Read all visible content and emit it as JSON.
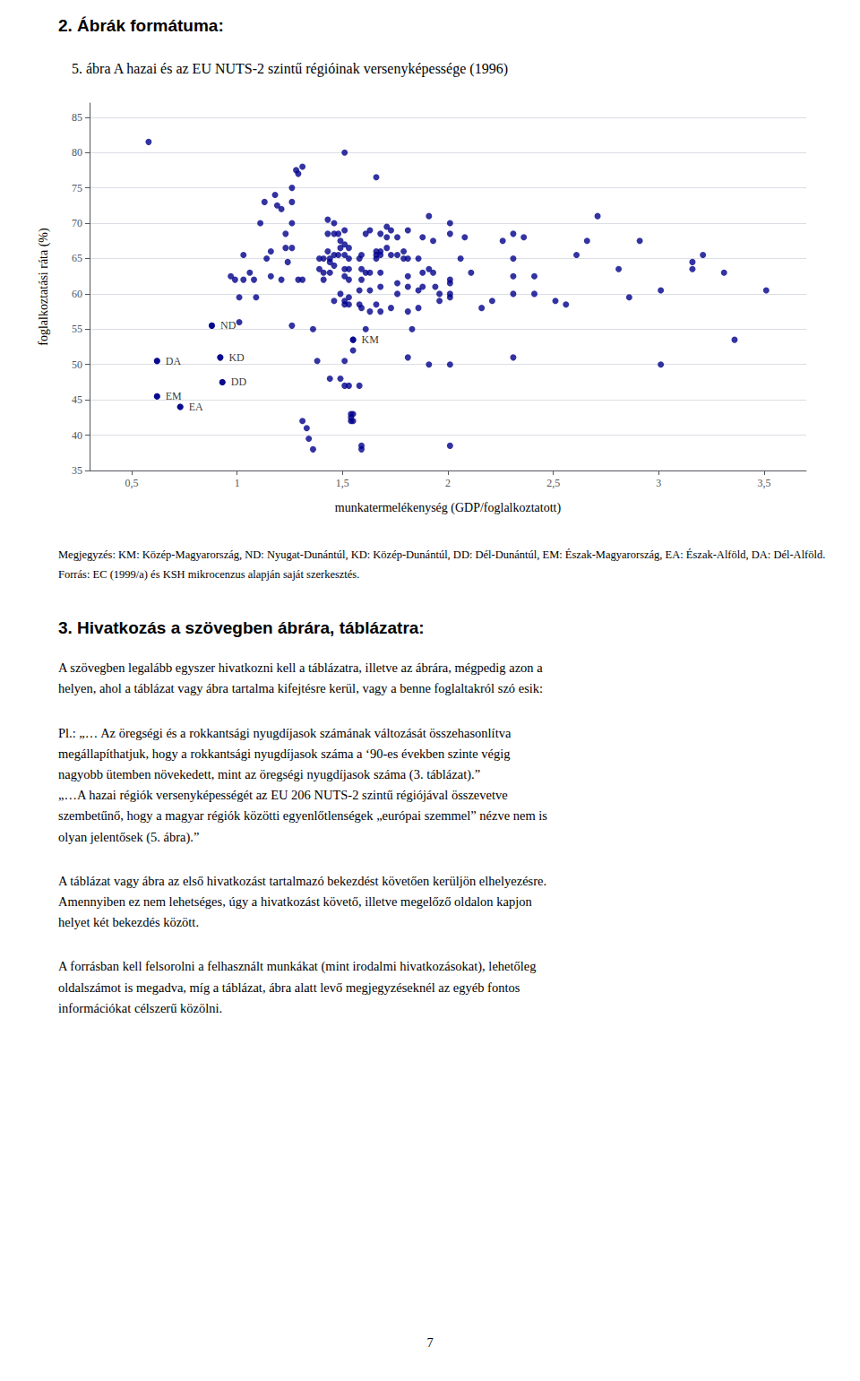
{
  "chart_data": {
    "type": "scatter",
    "title": "5. ábra A hazai és az EU NUTS-2 szintű régióinak versenyképessége (1996)",
    "xlabel": "munkatermelékenység (GDP/foglalkoztatott)",
    "ylabel": "foglalkoztatási ráta (%)",
    "xlim": [
      0.3,
      3.7
    ],
    "ylim": [
      35,
      87
    ],
    "xticks": [
      {
        "value": 0.5,
        "label": "0,5"
      },
      1,
      {
        "value": 1.5,
        "label": "1,5"
      },
      2,
      {
        "value": 2.5,
        "label": "2,5"
      },
      3,
      {
        "value": 3.5,
        "label": "3,5"
      }
    ],
    "yticks": [
      35,
      40,
      45,
      50,
      55,
      60,
      65,
      70,
      75,
      80,
      85
    ],
    "grid": "y",
    "color": "#00008B",
    "x": [
      0.58,
      0.62,
      0.62,
      0.73,
      0.88,
      0.92,
      0.93,
      0.97,
      0.99,
      1.01,
      1.01,
      1.03,
      1.03,
      1.06,
      1.08,
      1.09,
      1.11,
      1.13,
      1.14,
      1.16,
      1.16,
      1.18,
      1.19,
      1.21,
      1.21,
      1.23,
      1.23,
      1.24,
      1.26,
      1.26,
      1.26,
      1.26,
      1.26,
      1.28,
      1.29,
      1.29,
      1.31,
      1.31,
      1.31,
      1.33,
      1.34,
      1.36,
      1.36,
      1.38,
      1.39,
      1.39,
      1.41,
      1.41,
      1.41,
      1.43,
      1.43,
      1.43,
      1.44,
      1.44,
      1.44,
      1.44,
      1.46,
      1.46,
      1.46,
      1.46,
      1.46,
      1.48,
      1.48,
      1.49,
      1.49,
      1.49,
      1.49,
      1.51,
      1.51,
      1.51,
      1.51,
      1.51,
      1.51,
      1.51,
      1.51,
      1.51,
      1.51,
      1.53,
      1.53,
      1.53,
      1.53,
      1.53,
      1.53,
      1.53,
      1.54,
      1.54,
      1.54,
      1.55,
      1.55,
      1.55,
      1.55,
      1.58,
      1.58,
      1.58,
      1.58,
      1.59,
      1.59,
      1.59,
      1.59,
      1.59,
      1.59,
      1.61,
      1.61,
      1.61,
      1.63,
      1.63,
      1.63,
      1.63,
      1.66,
      1.66,
      1.66,
      1.66,
      1.66,
      1.68,
      1.68,
      1.68,
      1.68,
      1.68,
      1.68,
      1.71,
      1.71,
      1.71,
      1.73,
      1.73,
      1.73,
      1.76,
      1.76,
      1.76,
      1.76,
      1.79,
      1.79,
      1.81,
      1.81,
      1.81,
      1.81,
      1.81,
      1.81,
      1.83,
      1.86,
      1.86,
      1.86,
      1.88,
      1.88,
      1.88,
      1.91,
      1.91,
      1.91,
      1.93,
      1.93,
      1.94,
      1.96,
      1.96,
      2.01,
      2.01,
      2.01,
      2.01,
      2.01,
      2.01,
      2.01,
      2.01,
      2.06,
      2.08,
      2.11,
      2.16,
      2.21,
      2.26,
      2.31,
      2.31,
      2.31,
      2.31,
      2.31,
      2.36,
      2.41,
      2.41,
      2.51,
      2.56,
      2.61,
      2.66,
      2.71,
      2.81,
      2.86,
      2.91,
      3.01,
      3.01,
      3.16,
      3.16,
      3.21,
      3.31,
      3.36,
      3.51
    ],
    "values": [
      81.5,
      50.5,
      45.5,
      44.0,
      55.5,
      51.0,
      47.5,
      62.5,
      62.0,
      59.5,
      56.0,
      65.5,
      62.0,
      63.0,
      62.0,
      59.5,
      70.0,
      73.0,
      65.0,
      66.0,
      62.5,
      74.0,
      72.5,
      72.0,
      62.0,
      68.5,
      66.5,
      64.5,
      75.0,
      73.0,
      70.0,
      66.5,
      55.5,
      77.5,
      77.0,
      62.0,
      78.0,
      62.0,
      42.0,
      41.0,
      39.5,
      38.0,
      55.0,
      50.5,
      65.0,
      63.5,
      65.0,
      63.0,
      62.0,
      70.5,
      68.5,
      66.0,
      65.0,
      64.5,
      63.0,
      48.0,
      70.0,
      68.5,
      65.5,
      64.0,
      59.0,
      68.5,
      65.5,
      67.5,
      66.5,
      60.0,
      48.0,
      80.0,
      69.0,
      67.0,
      65.5,
      63.5,
      62.5,
      59.0,
      58.5,
      50.5,
      47.0,
      66.5,
      65.0,
      63.5,
      62.0,
      59.5,
      58.5,
      47.0,
      43.0,
      42.5,
      42.0,
      53.5,
      52.0,
      43.0,
      42.0,
      65.0,
      60.5,
      58.5,
      47.0,
      65.5,
      63.5,
      62.0,
      58.0,
      38.5,
      38.0,
      68.5,
      63.0,
      55.0,
      69.0,
      63.0,
      60.5,
      57.5,
      76.5,
      66.0,
      65.5,
      65.0,
      58.5,
      68.5,
      66.0,
      65.5,
      63.0,
      61.0,
      57.5,
      69.5,
      68.0,
      66.5,
      69.0,
      65.5,
      58.0,
      68.0,
      65.5,
      61.5,
      60.0,
      66.0,
      65.0,
      69.0,
      65.0,
      62.5,
      61.0,
      57.5,
      51.0,
      55.0,
      65.0,
      60.5,
      58.0,
      68.0,
      63.0,
      61.0,
      71.0,
      63.5,
      50.0,
      67.5,
      63.0,
      61.0,
      60.0,
      59.0,
      70.0,
      68.5,
      62.0,
      61.5,
      60.0,
      59.5,
      50.0,
      38.5,
      65.0,
      68.0,
      63.0,
      58.0,
      59.0,
      67.5,
      68.5,
      65.0,
      62.5,
      60.0,
      51.0,
      68.0,
      62.5,
      60.0,
      59.0,
      58.5,
      65.5,
      67.5,
      71.0,
      63.5,
      59.5,
      67.5,
      60.5,
      50.0,
      64.5,
      63.5,
      65.5,
      63.0,
      53.5,
      60.5
    ],
    "annotations": [
      {
        "x": 0.62,
        "y": 50.5,
        "text": "DA"
      },
      {
        "x": 0.88,
        "y": 55.5,
        "text": "ND"
      },
      {
        "x": 0.92,
        "y": 51.0,
        "text": "KD"
      },
      {
        "x": 0.93,
        "y": 47.5,
        "text": "DD"
      },
      {
        "x": 0.62,
        "y": 45.5,
        "text": "EM"
      },
      {
        "x": 0.73,
        "y": 44.0,
        "text": "EA"
      },
      {
        "x": 1.55,
        "y": 53.5,
        "text": "KM"
      },
      {
        "text": "2. Ábrák formátuma:"
      },
      {
        "text": "Megjegyzés: KM: Közép-Magyarország, ND: Nyugat-Dunántúl, KD: Közép-Dunántúl, DD: Dél-Dunántúl, EM: Észak-Magyarország, EA: Észak-Alföld, DA: Dél-Alföld."
      },
      {
        "text": "Forrás: EC (1999/a) és KSH mikrocenzus alapján saját szerkesztés."
      },
      {
        "text": "3. Hivatkozás a szövegben ábrára, táblázatra:"
      },
      {
        "text": "A szövegben legalább egyszer hivatkozni kell a táblázatra, illetve az ábrára, mégpedig azon a\nhelyen, ahol a táblázat vagy ábra tartalma kifejtésre kerül, vagy a benne foglaltakról szó esik:"
      },
      {
        "text": "Pl.:  „…  Az öregségi és a rokkantsági nyugdíjasok számának változását összehasonlítva\nmegállapíthatjuk, hogy a rokkantsági nyugdíjasok száma a ‘90-es években szinte végig\nnagyobb ütemben növekedett, mint az öregségi nyugdíjasok száma (3. táblázat).”\n„…A hazai régiók versenyképességét az EU 206 NUTS-2 szintű régiójával összevetve\nszembetűnő, hogy a magyar régiók közötti egyenlőtlenségek „európai szemmel” nézve nem is\nolyan jelentősek (5. ábra).”"
      },
      {
        "text": "A táblázat vagy ábra az első hivatkozást tartalmazó bekezdést követően kerüljön elhelyezésre.\nAmennyiben ez nem lehetséges, úgy a hivatkozást követő, illetve megelőző oldalon kapjon\nhelyet két bekezdés között."
      },
      {
        "text": "A forrásban kell felsorolni a felhasznált munkákat (mint irodalmi hivatkozásokat), lehetőleg\noldalszámot is megadva, míg a táblázat, ábra alatt levő megjegyzéseknél az egyéb fontos\ninformációkat célszerű közölni."
      },
      {
        "text": "7"
      }
    ]
  }
}
